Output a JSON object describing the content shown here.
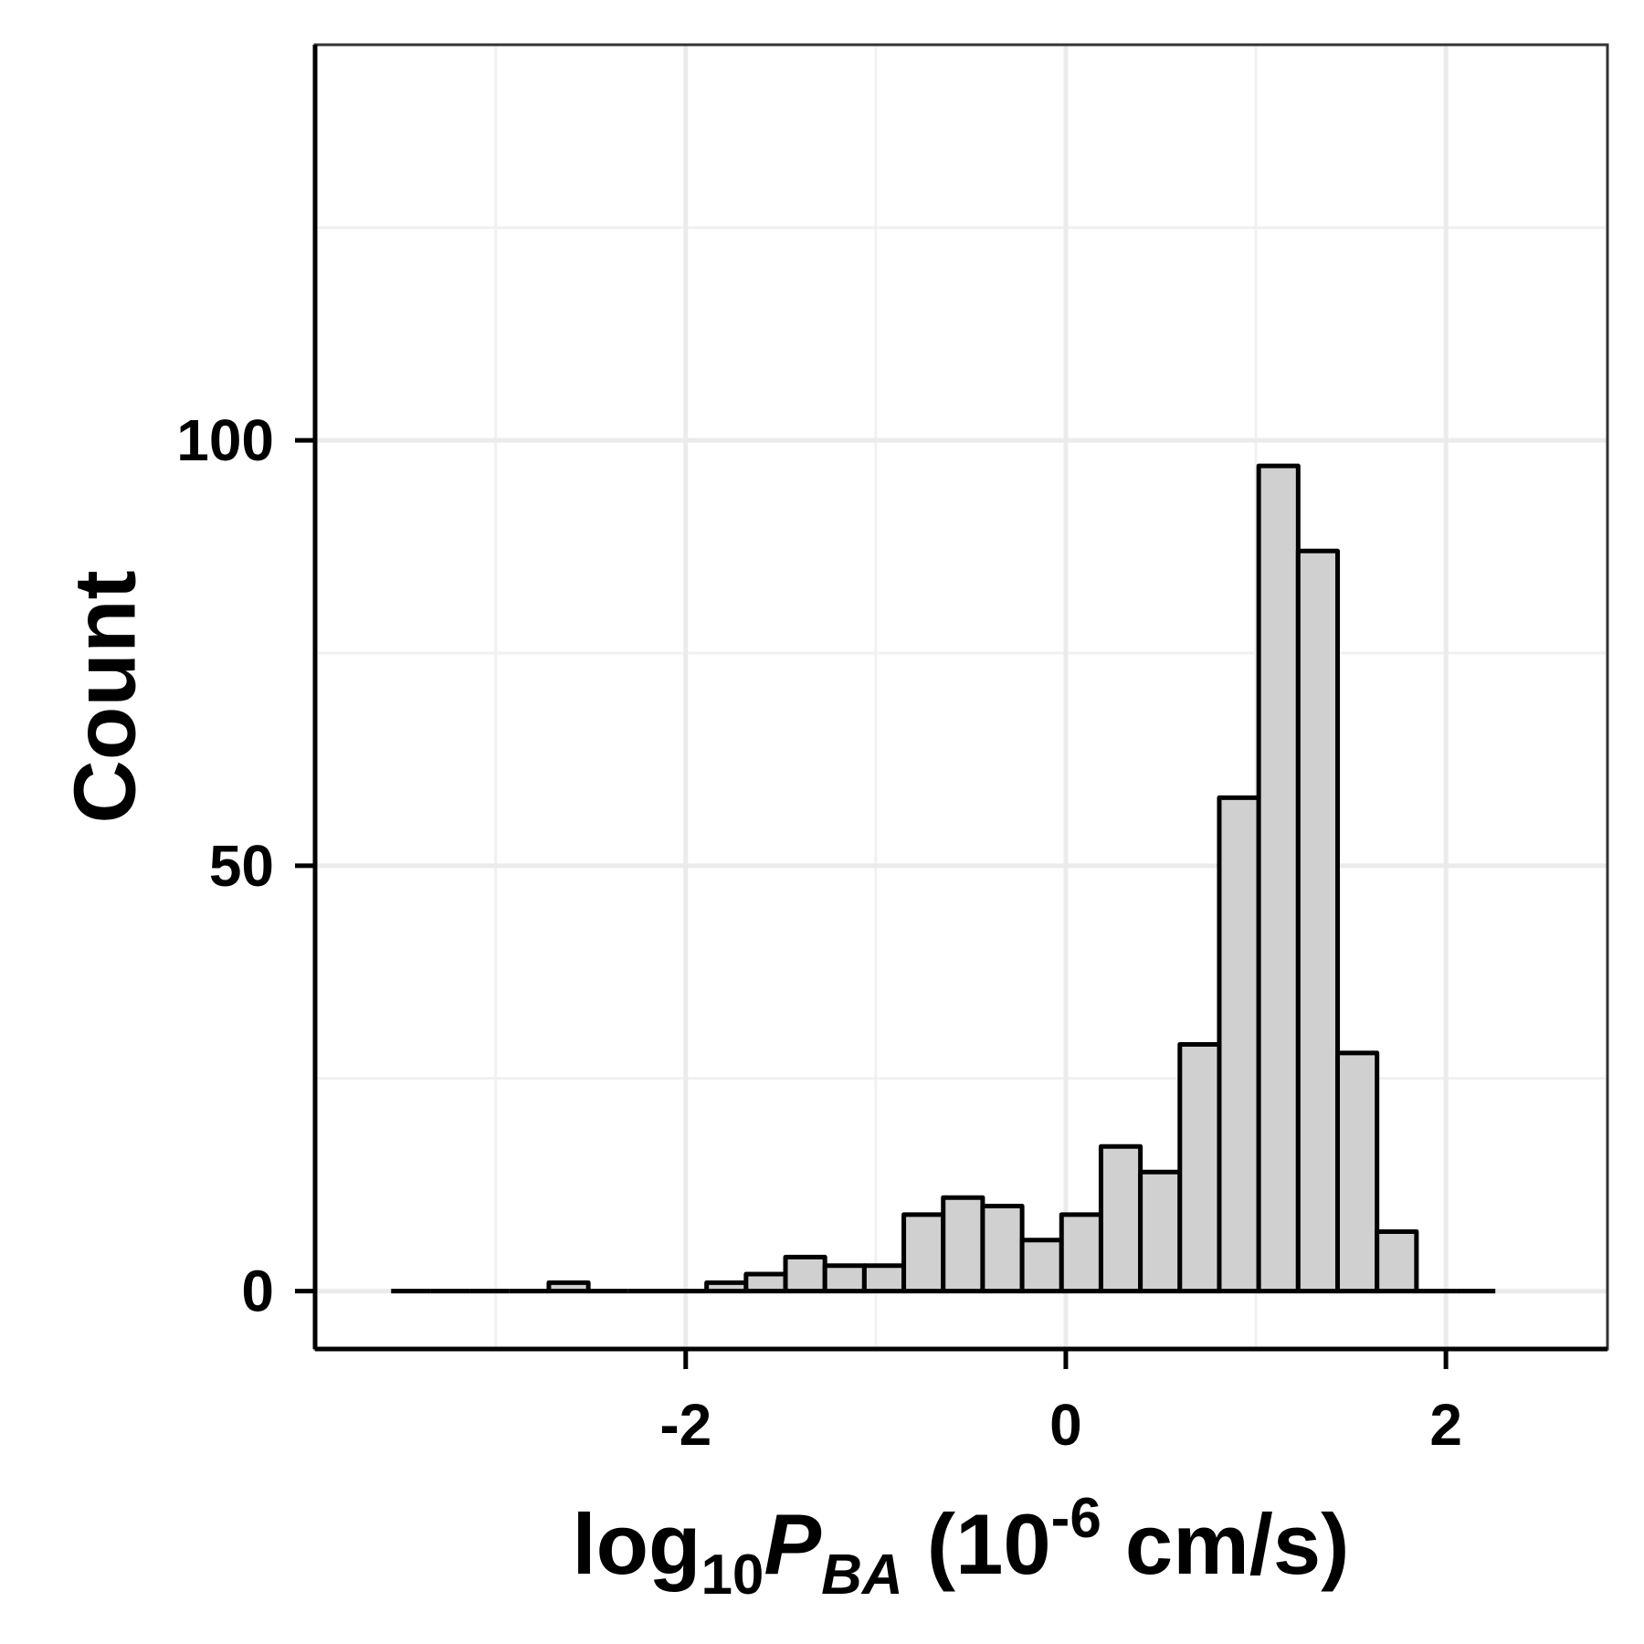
{
  "chart_data": {
    "type": "bar",
    "subtype": "histogram",
    "xlabel_parts": {
      "base": "log",
      "base_subscript": "10",
      "var": "P",
      "var_subscript": "BA",
      "unit_open": " (10",
      "unit_exponent": "-6",
      "unit_close": " cm/s)"
    },
    "ylabel": "Count",
    "xlim": [
      -3.95,
      2.85
    ],
    "ylim": [
      -6.8,
      146.5
    ],
    "x_ticks": [
      -2,
      0,
      2
    ],
    "x_tick_labels": [
      "-2",
      "0",
      "2"
    ],
    "y_ticks": [
      0,
      50,
      100
    ],
    "y_tick_labels": [
      "0",
      "50",
      "100"
    ],
    "grid": true,
    "bin_width": 0.2075,
    "bins": [
      {
        "x0": -3.55,
        "x1": -3.3425,
        "count": 0
      },
      {
        "x0": -3.3425,
        "x1": -3.135,
        "count": 0
      },
      {
        "x0": -3.135,
        "x1": -2.9275,
        "count": 0
      },
      {
        "x0": -2.9275,
        "x1": -2.72,
        "count": 0
      },
      {
        "x0": -2.72,
        "x1": -2.5125,
        "count": 1
      },
      {
        "x0": -2.5125,
        "x1": -2.305,
        "count": 0
      },
      {
        "x0": -2.305,
        "x1": -2.0975,
        "count": 0
      },
      {
        "x0": -2.0975,
        "x1": -1.89,
        "count": 0
      },
      {
        "x0": -1.89,
        "x1": -1.6825,
        "count": 1
      },
      {
        "x0": -1.6825,
        "x1": -1.475,
        "count": 2
      },
      {
        "x0": -1.475,
        "x1": -1.2675,
        "count": 4
      },
      {
        "x0": -1.2675,
        "x1": -1.06,
        "count": 3
      },
      {
        "x0": -1.06,
        "x1": -0.8525,
        "count": 3
      },
      {
        "x0": -0.8525,
        "x1": -0.645,
        "count": 9
      },
      {
        "x0": -0.645,
        "x1": -0.4375,
        "count": 11
      },
      {
        "x0": -0.4375,
        "x1": -0.23,
        "count": 10
      },
      {
        "x0": -0.23,
        "x1": -0.0225,
        "count": 6
      },
      {
        "x0": -0.0225,
        "x1": 0.185,
        "count": 9
      },
      {
        "x0": 0.185,
        "x1": 0.3925,
        "count": 17
      },
      {
        "x0": 0.3925,
        "x1": 0.6,
        "count": 14
      },
      {
        "x0": 0.6,
        "x1": 0.8075,
        "count": 29
      },
      {
        "x0": 0.8075,
        "x1": 1.015,
        "count": 58
      },
      {
        "x0": 1.015,
        "x1": 1.2225,
        "count": 97
      },
      {
        "x0": 1.2225,
        "x1": 1.43,
        "count": 87
      },
      {
        "x0": 1.43,
        "x1": 1.6375,
        "count": 28
      },
      {
        "x0": 1.6375,
        "x1": 1.845,
        "count": 7
      },
      {
        "x0": 1.845,
        "x1": 2.0525,
        "count": 0
      },
      {
        "x0": 2.0525,
        "x1": 2.26,
        "count": 0
      }
    ],
    "colors": {
      "bar_fill": "#d0d0d0",
      "bar_stroke": "#000000",
      "grid_major": "#ebebeb",
      "grid_minor": "#f1f1f1",
      "panel_border": "#333333"
    }
  }
}
